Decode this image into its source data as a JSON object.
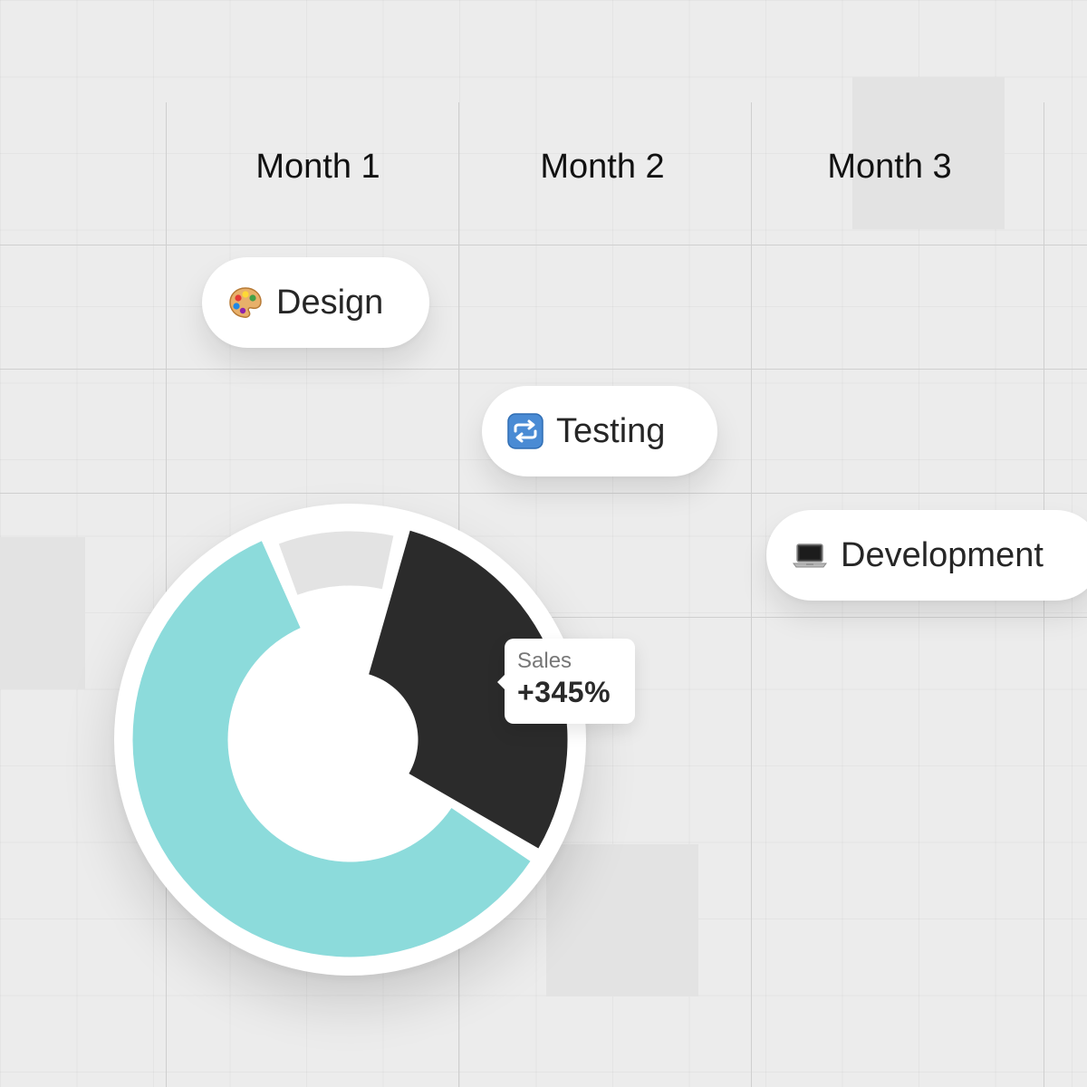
{
  "timeline": {
    "months": [
      "Month 1",
      "Month 2",
      "Month 3"
    ],
    "tasks": [
      {
        "label": "Design",
        "icon": "artist-palette-icon"
      },
      {
        "label": "Testing",
        "icon": "repeat-arrows-icon"
      },
      {
        "label": "Development",
        "icon": "laptop-icon"
      }
    ]
  },
  "chart_data": {
    "type": "pie",
    "donut": true,
    "segments": [
      {
        "value": 10,
        "color": "#e3e3e3"
      },
      {
        "value": 30,
        "color": "#2b2b2b"
      },
      {
        "value": 60,
        "color": "#8cdbdb"
      }
    ],
    "tooltip": {
      "label": "Sales",
      "value": "+345%"
    }
  },
  "colors": {
    "background": "#ececec",
    "teal": "#8cdbdb",
    "dark": "#2b2b2b",
    "gray": "#e3e3e3"
  }
}
